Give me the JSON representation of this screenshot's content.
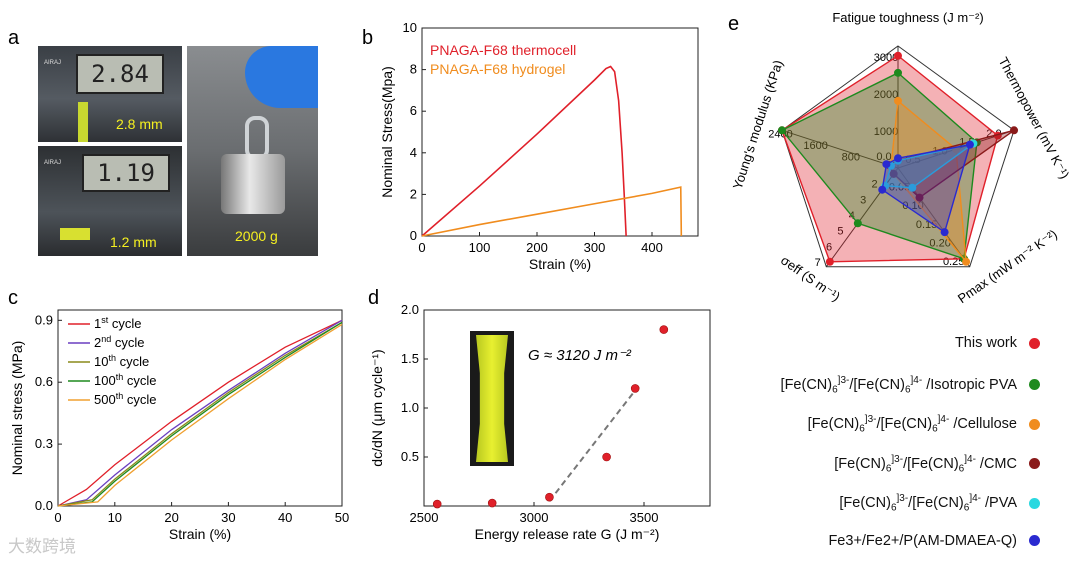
{
  "panels": {
    "a": {
      "letter": "a",
      "caliper1": {
        "display": "2.84",
        "label": "2.8 mm"
      },
      "caliper2": {
        "display": "1.19",
        "label": "1.2 mm"
      },
      "weight": {
        "label": "2000 g"
      },
      "caliper_brand": "AIRAJ"
    },
    "b": {
      "letter": "b"
    },
    "c": {
      "letter": "c"
    },
    "d": {
      "letter": "d",
      "annotation": "G ≈ 3120 J m⁻²"
    },
    "e": {
      "letter": "e"
    }
  },
  "watermark": "大数跨境",
  "chart_data": [
    {
      "id": "b",
      "type": "line",
      "xlabel": "Strain (%)",
      "ylabel": "Nominal Stress(Mpa)",
      "xlim": [
        0,
        480
      ],
      "ylim": [
        0,
        10
      ],
      "xticks": [
        0,
        100,
        200,
        300,
        400
      ],
      "yticks": [
        0,
        2,
        4,
        6,
        8,
        10
      ],
      "legend_position": "top-left",
      "series": [
        {
          "name": "PNAGA-F68 thermocell",
          "color": "#e0202a",
          "x": [
            0,
            100,
            200,
            300,
            320,
            328,
            335,
            342,
            348,
            352,
            355
          ],
          "y": [
            0,
            2.4,
            4.9,
            7.5,
            8.05,
            8.15,
            7.9,
            6.5,
            4.0,
            1.8,
            0
          ]
        },
        {
          "name": "PNAGA-F68 hydrogel",
          "color": "#f08c1e",
          "x": [
            0,
            100,
            200,
            300,
            400,
            450,
            451
          ],
          "y": [
            0,
            0.55,
            1.05,
            1.55,
            2.05,
            2.35,
            0
          ]
        }
      ]
    },
    {
      "id": "c",
      "type": "line",
      "xlabel": "Strain (%)",
      "ylabel": "Nominal stress (MPa)",
      "xlim": [
        0,
        50
      ],
      "ylim": [
        0,
        0.95
      ],
      "xticks": [
        0,
        10,
        20,
        30,
        40,
        50
      ],
      "yticks": [
        0.0,
        0.3,
        0.6,
        0.9
      ],
      "legend_position": "top-left",
      "series": [
        {
          "name": "1st cycle",
          "sup": "st",
          "base": "1",
          "tail": " cycle",
          "color": "#e0202a",
          "x": [
            0,
            5,
            10,
            20,
            30,
            40,
            50
          ],
          "y": [
            0,
            0.08,
            0.2,
            0.41,
            0.6,
            0.77,
            0.9
          ]
        },
        {
          "name": "2nd cycle",
          "sup": "nd",
          "base": "2",
          "tail": "  cycle",
          "color": "#6a3fc0",
          "x": [
            0,
            5,
            10,
            20,
            30,
            40,
            50
          ],
          "y": [
            0,
            0.03,
            0.15,
            0.37,
            0.56,
            0.74,
            0.9
          ]
        },
        {
          "name": "10th cycle",
          "sup": "th",
          "base": "10",
          "tail": " cycle",
          "color": "#8a8a1a",
          "x": [
            0,
            6,
            10,
            20,
            30,
            40,
            50
          ],
          "y": [
            0,
            0.03,
            0.13,
            0.35,
            0.55,
            0.73,
            0.89
          ]
        },
        {
          "name": "100th cycle",
          "sup": "th",
          "base": "100",
          "tail": " cycle",
          "color": "#1e8a1e",
          "x": [
            0,
            6,
            10,
            20,
            30,
            40,
            50
          ],
          "y": [
            0,
            0.02,
            0.12,
            0.34,
            0.54,
            0.72,
            0.89
          ]
        },
        {
          "name": "500th cycle",
          "sup": "th",
          "base": "500",
          "tail": "  cycle",
          "color": "#f0a030",
          "x": [
            0,
            7,
            10,
            20,
            30,
            40,
            50
          ],
          "y": [
            0,
            0.02,
            0.1,
            0.32,
            0.52,
            0.71,
            0.88
          ]
        }
      ]
    },
    {
      "id": "d",
      "type": "scatter",
      "xlabel": "Energy release rate G (J m⁻²)",
      "ylabel": "dc/dN (μm cycle⁻¹)",
      "xlim": [
        2500,
        3800
      ],
      "ylim": [
        0,
        2.0
      ],
      "xticks": [
        2500,
        3000,
        3500
      ],
      "yticks": [
        0.5,
        1.0,
        1.5,
        2.0
      ],
      "series": [
        {
          "name": "",
          "color": "#e0202a",
          "x": [
            2560,
            2810,
            3070,
            3330,
            3460,
            3590
          ],
          "y": [
            0.02,
            0.03,
            0.09,
            0.5,
            1.2,
            1.8
          ]
        }
      ],
      "fit_line": {
        "x": [
          3070,
          3460
        ],
        "y": [
          0.05,
          1.18
        ]
      }
    },
    {
      "id": "e",
      "type": "radar",
      "axes": [
        {
          "label": "Fatigue toughness (J m⁻²)",
          "ticks": [
            "1000",
            "2000",
            "3000"
          ]
        },
        {
          "label": "Thermopower (mV K⁻¹)",
          "ticks": [
            "0.5",
            "1.0",
            "1.5",
            "2.0"
          ]
        },
        {
          "label": "Pmax (mW m⁻² K⁻²)",
          "ticks": [
            "0.05",
            "0.10",
            "0.15",
            "0.20",
            "0.25"
          ]
        },
        {
          "label": "σeff (S m⁻¹)",
          "ticks": [
            "2",
            "3",
            "4",
            "5",
            "6",
            "7"
          ]
        },
        {
          "label": "Young's modulus (KPa)",
          "ticks": [
            "800",
            "1600",
            "2400"
          ]
        }
      ],
      "center_label": "0.0",
      "series": [
        {
          "name": "This work",
          "color": "#e0202a",
          "values": [
            0.92,
            0.86,
            0.92,
            0.95,
            1.0
          ]
        },
        {
          "name": "[Fe(CN)6]3-/[Fe(CN)6]4- /Isotropic PVA",
          "color": "#1e8a1e",
          "values": [
            0.78,
            0.68,
            0.92,
            0.56,
            1.0
          ]
        },
        {
          "name": "[Fe(CN)6]3-/[Fe(CN)6]4- /Cellulose",
          "color": "#f08c1e",
          "values": [
            0.55,
            0.5,
            0.95,
            0.05,
            0.05
          ]
        },
        {
          "name": "[Fe(CN)6]3-/[Fe(CN)6]4- /CMC",
          "color": "#8a1a1a",
          "values": [
            0.02,
            1.0,
            0.3,
            0.06,
            0.08
          ]
        },
        {
          "name": "[Fe(CN)6]3-/[Fe(CN)6]4- /PVA",
          "color": "#2ad8e0",
          "values": [
            0.05,
            0.65,
            0.2,
            0.18,
            0.05
          ]
        },
        {
          "name": "Fe3+/Fe2+/P(AM-DMAEA-Q)",
          "color": "#2a2ad0",
          "values": [
            0.08,
            0.62,
            0.65,
            0.22,
            0.1
          ]
        }
      ]
    }
  ],
  "legend_e": [
    {
      "base": "This work",
      "color": "#e0202a"
    },
    {
      "base": "[Fe(CN)",
      "sub1": "6",
      "sup1": "]3-",
      "mid": "/[Fe(CN)",
      "sub2": "6",
      "sup2": "]4-",
      "tail": " /Isotropic PVA",
      "color": "#1e8a1e"
    },
    {
      "base": "[Fe(CN)",
      "sub1": "6",
      "sup1": "]3-",
      "mid": "/[Fe(CN)",
      "sub2": "6",
      "sup2": "]4-",
      "tail": " /Cellulose",
      "color": "#f08c1e"
    },
    {
      "base": "[Fe(CN)",
      "sub1": "6",
      "sup1": "]3-",
      "mid": "/[Fe(CN)",
      "sub2": "6",
      "sup2": "]4-",
      "tail": " /CMC",
      "color": "#8a1a1a"
    },
    {
      "base": "[Fe(CN)",
      "sub1": "6",
      "sup1": "]3-",
      "mid": "/[Fe(CN)",
      "sub2": "6",
      "sup2": "]4-",
      "tail": " /PVA",
      "color": "#2ad8e0"
    },
    {
      "base": "Fe3+/Fe2+/P(AM-DMAEA-Q)",
      "color": "#2a2ad0"
    }
  ]
}
